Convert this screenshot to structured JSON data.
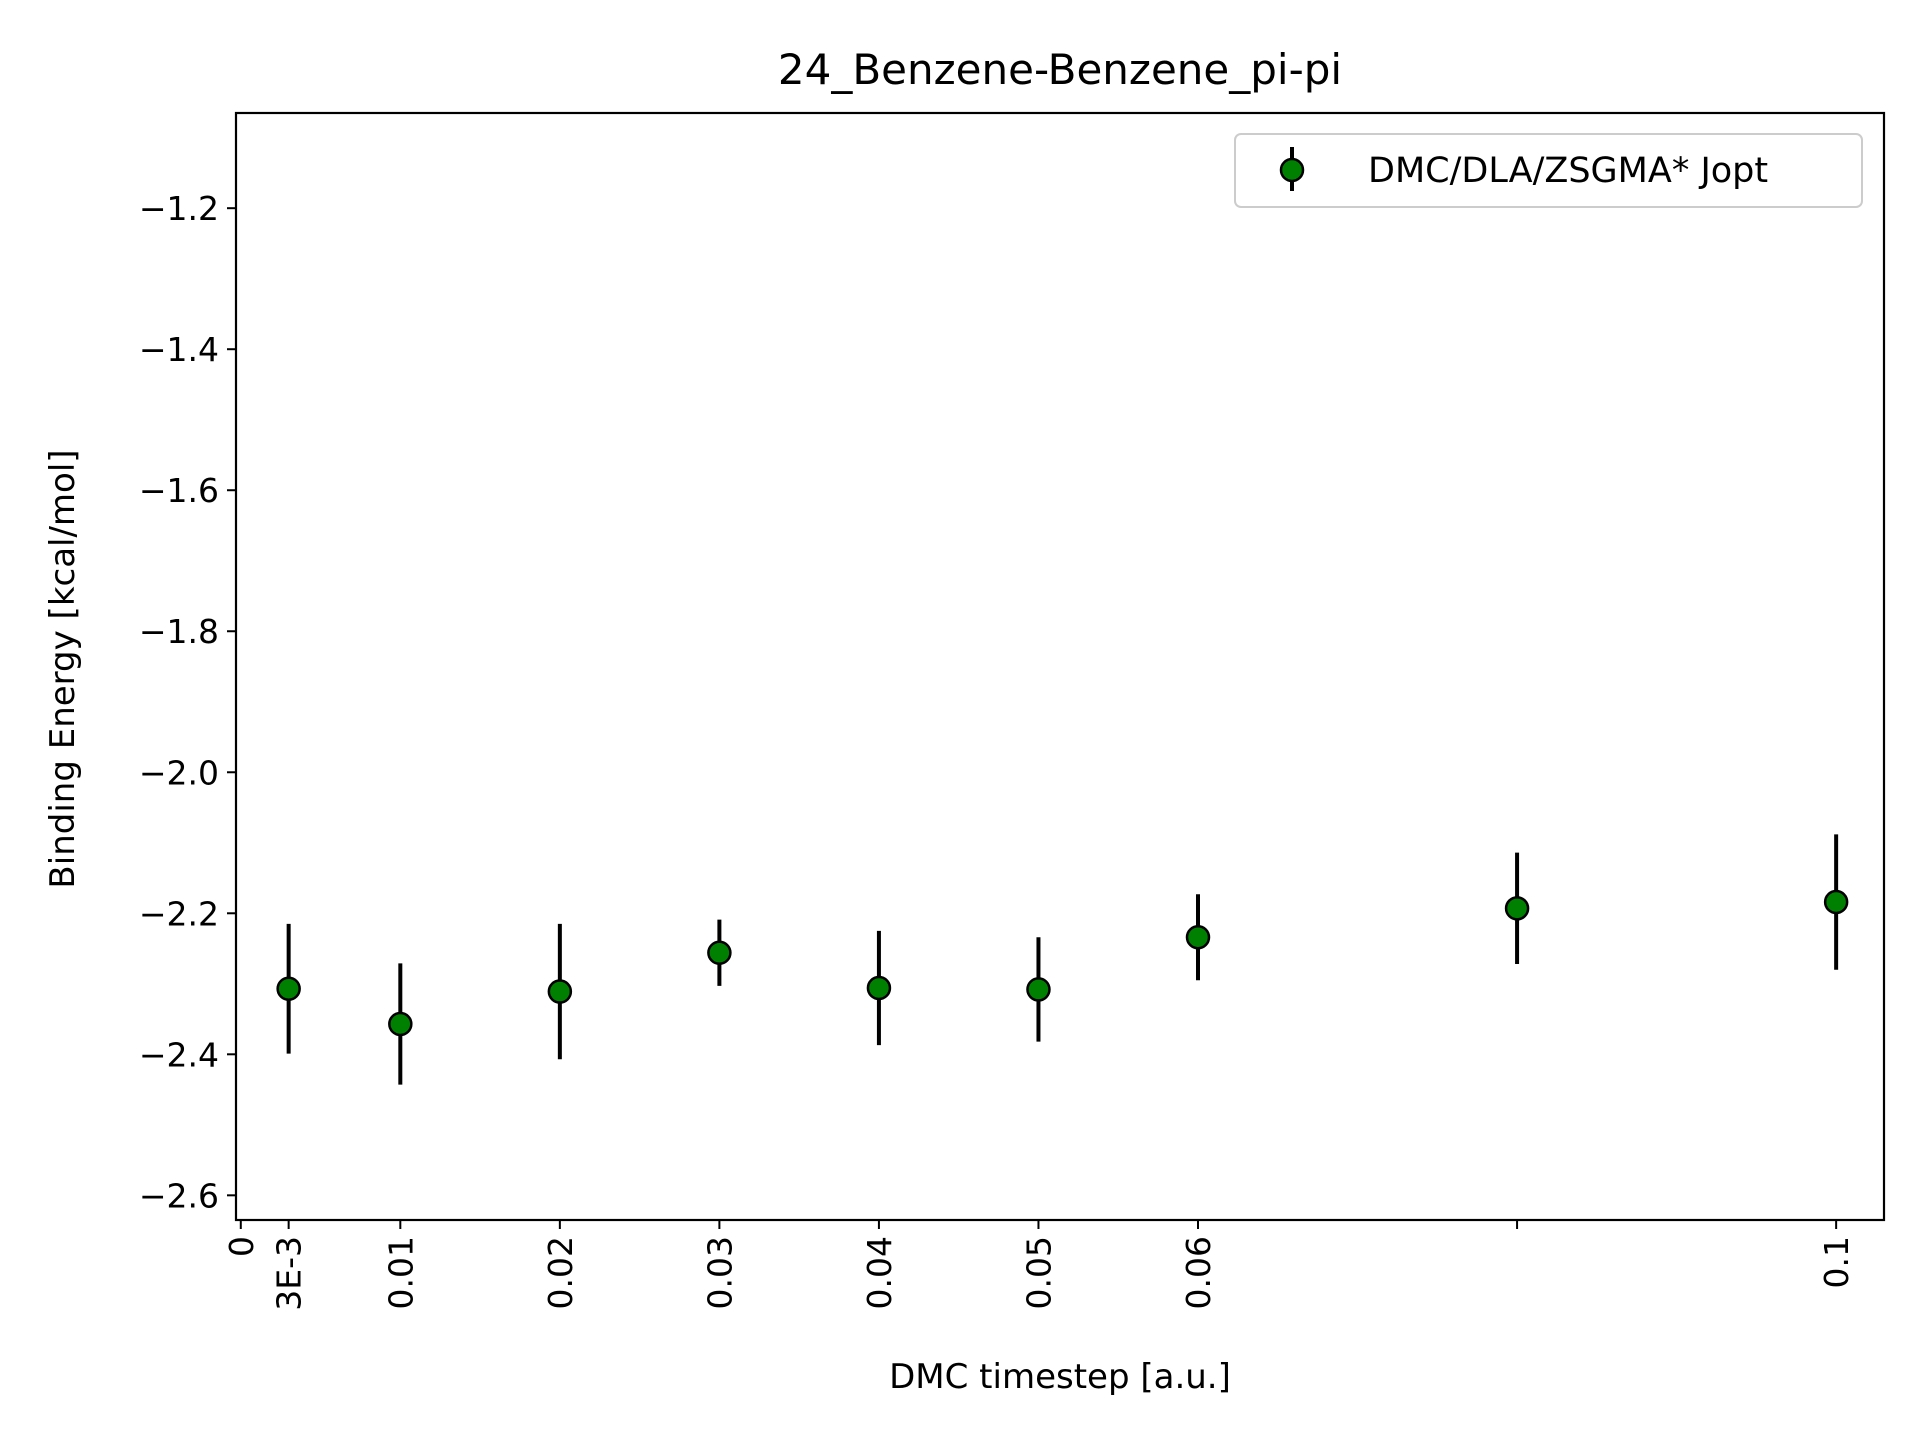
{
  "chart_data": {
    "type": "scatter",
    "title": "24_Benzene-Benzene_pi-pi",
    "xlabel": "DMC timestep [a.u.]",
    "ylabel": "Binding Energy [kcal/mol]",
    "xlim": [
      -0.0003,
      0.103
    ],
    "ylim": [
      -2.635,
      -1.065
    ],
    "x_ticks": [
      {
        "value": 0,
        "label": "0"
      },
      {
        "value": 0.003,
        "label": "3E-3"
      },
      {
        "value": 0.01,
        "label": "0.01"
      },
      {
        "value": 0.02,
        "label": "0.02"
      },
      {
        "value": 0.03,
        "label": "0.03"
      },
      {
        "value": 0.04,
        "label": "0.04"
      },
      {
        "value": 0.05,
        "label": "0.05"
      },
      {
        "value": 0.06,
        "label": "0.06"
      },
      {
        "value": 0.08,
        "label": ""
      },
      {
        "value": 0.1,
        "label": "0.1"
      }
    ],
    "y_ticks": [
      {
        "value": -1.2,
        "label": "−1.2"
      },
      {
        "value": -1.4,
        "label": "−1.4"
      },
      {
        "value": -1.6,
        "label": "−1.6"
      },
      {
        "value": -1.8,
        "label": "−1.8"
      },
      {
        "value": -2.0,
        "label": "−2.0"
      },
      {
        "value": -2.2,
        "label": "−2.2"
      },
      {
        "value": -2.4,
        "label": "−2.4"
      },
      {
        "value": -2.6,
        "label": "−2.6"
      }
    ],
    "grid": false,
    "legend_position": "top-right",
    "series": [
      {
        "name": "DMC/DLA/ZSGMA* Jopt",
        "color": "#008000",
        "edge_color": "#000000",
        "errorbar_color": "#000000",
        "points": [
          {
            "x": 0.003,
            "y": -2.307,
            "err": 0.092
          },
          {
            "x": 0.01,
            "y": -2.357,
            "err": 0.086
          },
          {
            "x": 0.02,
            "y": -2.311,
            "err": 0.096
          },
          {
            "x": 0.03,
            "y": -2.256,
            "err": 0.047
          },
          {
            "x": 0.04,
            "y": -2.306,
            "err": 0.081
          },
          {
            "x": 0.05,
            "y": -2.308,
            "err": 0.074
          },
          {
            "x": 0.06,
            "y": -2.234,
            "err": 0.061
          },
          {
            "x": 0.08,
            "y": -2.193,
            "err": 0.079
          },
          {
            "x": 0.1,
            "y": -2.184,
            "err": 0.096
          }
        ]
      }
    ]
  }
}
